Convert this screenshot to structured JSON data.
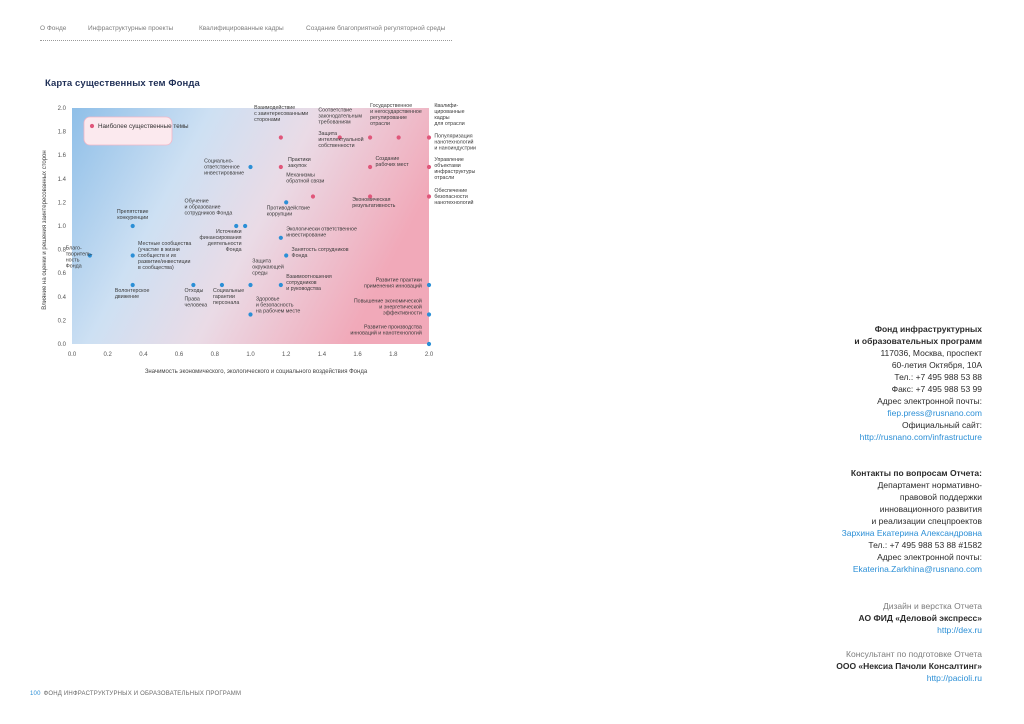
{
  "nav": {
    "items": [
      "О Фонде",
      "Инфраструктурные проекты",
      "Квалифицированные кадры",
      "Создание благоприятной регуляторной среды"
    ]
  },
  "chart_data": {
    "type": "scatter",
    "title": "Карта существенных тем Фонда",
    "xlabel": "Значимость экономического, экологического и социального воздействия Фонда",
    "ylabel": "Влияние на оценки и решения заинтересованных сторон",
    "xlim": [
      0,
      2.0
    ],
    "ylim": [
      0,
      2.0
    ],
    "xticks": [
      "0.0",
      "0.2",
      "0.4",
      "0.6",
      "0.8",
      "1.0",
      "1.2",
      "1.4",
      "1.6",
      "1.8",
      "2.0"
    ],
    "yticks": [
      "0.0",
      "0.2",
      "0.4",
      "0.6",
      "0.8",
      "1.0",
      "1.2",
      "1.4",
      "1.6",
      "1.8",
      "2.0"
    ],
    "legend": {
      "label": "Наиболее существенные темы",
      "color": "#e0567a",
      "position": "top-left"
    },
    "colors": {
      "material": "#e0567a",
      "other": "#2b8fd6"
    },
    "points": [
      {
        "x": 0.1,
        "y": 0.75,
        "material": false,
        "label": "Благо-\nтворитель-\nность\nФонда",
        "lx": -0.135,
        "ly": 0.05,
        "anchor": "start"
      },
      {
        "x": 0.34,
        "y": 0.75,
        "material": false,
        "label": "Местные сообщества\n(участие в жизни\nсообществ и их\nразвитие/инвестиции\nв сообщества)",
        "lx": 0.03,
        "ly": 0.09,
        "anchor": "start"
      },
      {
        "x": 0.34,
        "y": 1.0,
        "material": false,
        "label": "Препятствие\nконкуренции",
        "lx": 0.0,
        "ly": 0.11,
        "anchor": "middle"
      },
      {
        "x": 0.34,
        "y": 0.5,
        "material": false,
        "label": "Волонтерское\nдвижение",
        "lx": -0.1,
        "ly": -0.06,
        "anchor": "start"
      },
      {
        "x": 0.68,
        "y": 0.5,
        "material": false,
        "label": "Отходы",
        "lx": -0.05,
        "ly": -0.06,
        "anchor": "start"
      },
      {
        "x": 0.68,
        "y": 0.5,
        "material": false,
        "label": "Права\nчеловека",
        "lx": -0.05,
        "ly": -0.13,
        "anchor": "start",
        "nodot": true
      },
      {
        "x": 0.84,
        "y": 0.5,
        "material": false,
        "label": "Социальные\nгарантии\nперсонала",
        "lx": -0.05,
        "ly": -0.06,
        "anchor": "start"
      },
      {
        "x": 0.92,
        "y": 1.0,
        "material": false,
        "label": "Обучение\nи образование\nсотрудников Фонда",
        "lx": -0.29,
        "ly": 0.2,
        "anchor": "start"
      },
      {
        "x": 0.97,
        "y": 1.0,
        "material": false,
        "label": "Источники\nфинансирования\nдеятельности\nФонда",
        "lx": -0.02,
        "ly": -0.06,
        "anchor": "end"
      },
      {
        "x": 1.0,
        "y": 1.5,
        "material": false,
        "label": "Социально-\nответственное\nинвестирование",
        "lx": -0.26,
        "ly": 0.04,
        "anchor": "start"
      },
      {
        "x": 1.0,
        "y": 0.5,
        "material": false,
        "label": "Защита\nокружающей\nсреды",
        "lx": 0.01,
        "ly": 0.19,
        "anchor": "start"
      },
      {
        "x": 1.0,
        "y": 0.25,
        "material": false,
        "label": "Здоровье\nи безопасность\nна рабочем месте",
        "lx": 0.03,
        "ly": 0.12,
        "anchor": "start"
      },
      {
        "x": 1.2,
        "y": 1.2,
        "material": false,
        "label": "Противодействие\nкоррупции",
        "lx": -0.11,
        "ly": -0.06,
        "anchor": "start"
      },
      {
        "x": 1.17,
        "y": 0.9,
        "material": false,
        "label": "Экологически ответственное\nинвестирование",
        "lx": 0.03,
        "ly": 0.06,
        "anchor": "start"
      },
      {
        "x": 1.2,
        "y": 0.75,
        "material": false,
        "label": "Занятость сотрудников\nФонда",
        "lx": 0.03,
        "ly": 0.04,
        "anchor": "start"
      },
      {
        "x": 1.17,
        "y": 0.5,
        "material": false,
        "label": "Взаимоотношения\nсотрудников\nи руководства",
        "lx": 0.03,
        "ly": 0.06,
        "anchor": "start"
      },
      {
        "x": 1.17,
        "y": 1.75,
        "material": true,
        "label": "Взаимодействие\nс заинтересованными\nсторонами",
        "lx": -0.15,
        "ly": 0.24,
        "anchor": "start"
      },
      {
        "x": 1.17,
        "y": 1.5,
        "material": true,
        "label": "Практики\nзакупок",
        "lx": 0.04,
        "ly": 0.05,
        "anchor": "start"
      },
      {
        "x": 1.35,
        "y": 1.25,
        "material": true,
        "label": "Механизмы\nобратной связи",
        "lx": -0.15,
        "ly": 0.17,
        "anchor": "start"
      },
      {
        "x": 1.5,
        "y": 1.75,
        "material": true,
        "label": "Соответствие\nзаконодательным\nтребованиям",
        "lx": -0.12,
        "ly": 0.22,
        "anchor": "start"
      },
      {
        "x": 1.5,
        "y": 1.75,
        "material": true,
        "label": "Защита\nинтеллектуальной\nсобственности",
        "lx": -0.12,
        "ly": 0.02,
        "anchor": "start",
        "nodot": true
      },
      {
        "x": 1.67,
        "y": 1.75,
        "material": true,
        "label": "Государственное\nи негосударственное\nрегулирование\nотрасли",
        "lx": 0.0,
        "ly": 0.26,
        "anchor": "start"
      },
      {
        "x": 1.67,
        "y": 1.5,
        "material": true,
        "label": "Создание\nрабочих мест",
        "lx": 0.03,
        "ly": 0.06,
        "anchor": "start"
      },
      {
        "x": 1.67,
        "y": 1.25,
        "material": true,
        "label": "Экономическая\nрезультативность",
        "lx": -0.1,
        "ly": -0.04,
        "anchor": "start"
      },
      {
        "x": 1.83,
        "y": 1.75,
        "material": true,
        "label": "",
        "lx": 0,
        "ly": 0,
        "anchor": "start"
      },
      {
        "x": 2.0,
        "y": 1.75,
        "material": true,
        "label": "Квалифи-\nцированные\nкадры\nдля отрасли",
        "lx": 0.03,
        "ly": 0.26,
        "anchor": "start"
      },
      {
        "x": 2.0,
        "y": 1.5,
        "material": true,
        "label": "Популяризация\nнанотехнологий\nи наноиндустрии",
        "lx": 0.03,
        "ly": 0.25,
        "anchor": "start"
      },
      {
        "x": 2.0,
        "y": 1.5,
        "material": true,
        "label": "Управление\nобъектами\nинфраструктуры\nотрасли",
        "lx": 0.03,
        "ly": 0.05,
        "anchor": "start",
        "nodot": true
      },
      {
        "x": 2.0,
        "y": 1.25,
        "material": true,
        "label": "Обеспечение\nбезопасности\nнанотехнологий",
        "lx": 0.03,
        "ly": 0.04,
        "anchor": "start"
      },
      {
        "x": 2.0,
        "y": 0.5,
        "material": false,
        "label": "Развитие практики\nприменения инноваций",
        "lx": -0.04,
        "ly": 0.03,
        "anchor": "end"
      },
      {
        "x": 2.0,
        "y": 0.25,
        "material": false,
        "label": "Повышение экономической\nи энергетической\nэффективности",
        "lx": -0.04,
        "ly": 0.1,
        "anchor": "end"
      },
      {
        "x": 2.0,
        "y": 0.0,
        "material": false,
        "label": "Развитие производства\nинноваций и нанотехнологий",
        "lx": -0.04,
        "ly": 0.13,
        "anchor": "end"
      }
    ]
  },
  "contacts": {
    "fund": [
      {
        "t": "Фонд инфраструктурных",
        "c": "b"
      },
      {
        "t": "и образовательных программ",
        "c": "b"
      },
      {
        "t": "117036, Москва, проспект",
        "c": ""
      },
      {
        "t": "60-летия Октября, 10А",
        "c": ""
      },
      {
        "t": "Тел.: +7 495 988 53 88",
        "c": ""
      },
      {
        "t": "Факс: +7 495 988 53 99",
        "c": ""
      },
      {
        "t": "Адрес электронной почты:",
        "c": ""
      },
      {
        "t": "fiep.press@rusnano.com",
        "c": "l"
      },
      {
        "t": "Официальный сайт:",
        "c": ""
      },
      {
        "t": "http://rusnano.com/infrastructure",
        "c": "l"
      }
    ],
    "report": [
      {
        "t": "Контакты по вопросам Отчета:",
        "c": "b"
      },
      {
        "t": "Департамент нормативно-",
        "c": ""
      },
      {
        "t": "правовой поддержки",
        "c": ""
      },
      {
        "t": "инновационного развития",
        "c": ""
      },
      {
        "t": "и реализации спецпроектов",
        "c": ""
      },
      {
        "t": "Зархина Екатерина Александровна",
        "c": "l"
      },
      {
        "t": "Тел.: +7 495 988 53 88 #1582",
        "c": ""
      },
      {
        "t": "Адрес электронной почты:",
        "c": ""
      },
      {
        "t": "Ekaterina.Zarkhina@rusnano.com",
        "c": "l"
      }
    ],
    "design": [
      {
        "t": "Дизайн и верстка Отчета",
        "c": "g"
      },
      {
        "t": "АО ФИД «Деловой экспресс»",
        "c": "b"
      },
      {
        "t": "http://dex.ru",
        "c": "l"
      }
    ],
    "consult": [
      {
        "t": "Консультант по подготовке Отчета",
        "c": "g"
      },
      {
        "t": "ООО «Нексиа Пачоли Консалтинг»",
        "c": "b"
      },
      {
        "t": "http://pacioli.ru",
        "c": "l"
      }
    ]
  },
  "footer": {
    "page_number": "100",
    "text": "ФОНД ИНФРАСТРУКТУРНЫХ И ОБРАЗОВАТЕЛЬНЫХ ПРОГРАММ"
  }
}
